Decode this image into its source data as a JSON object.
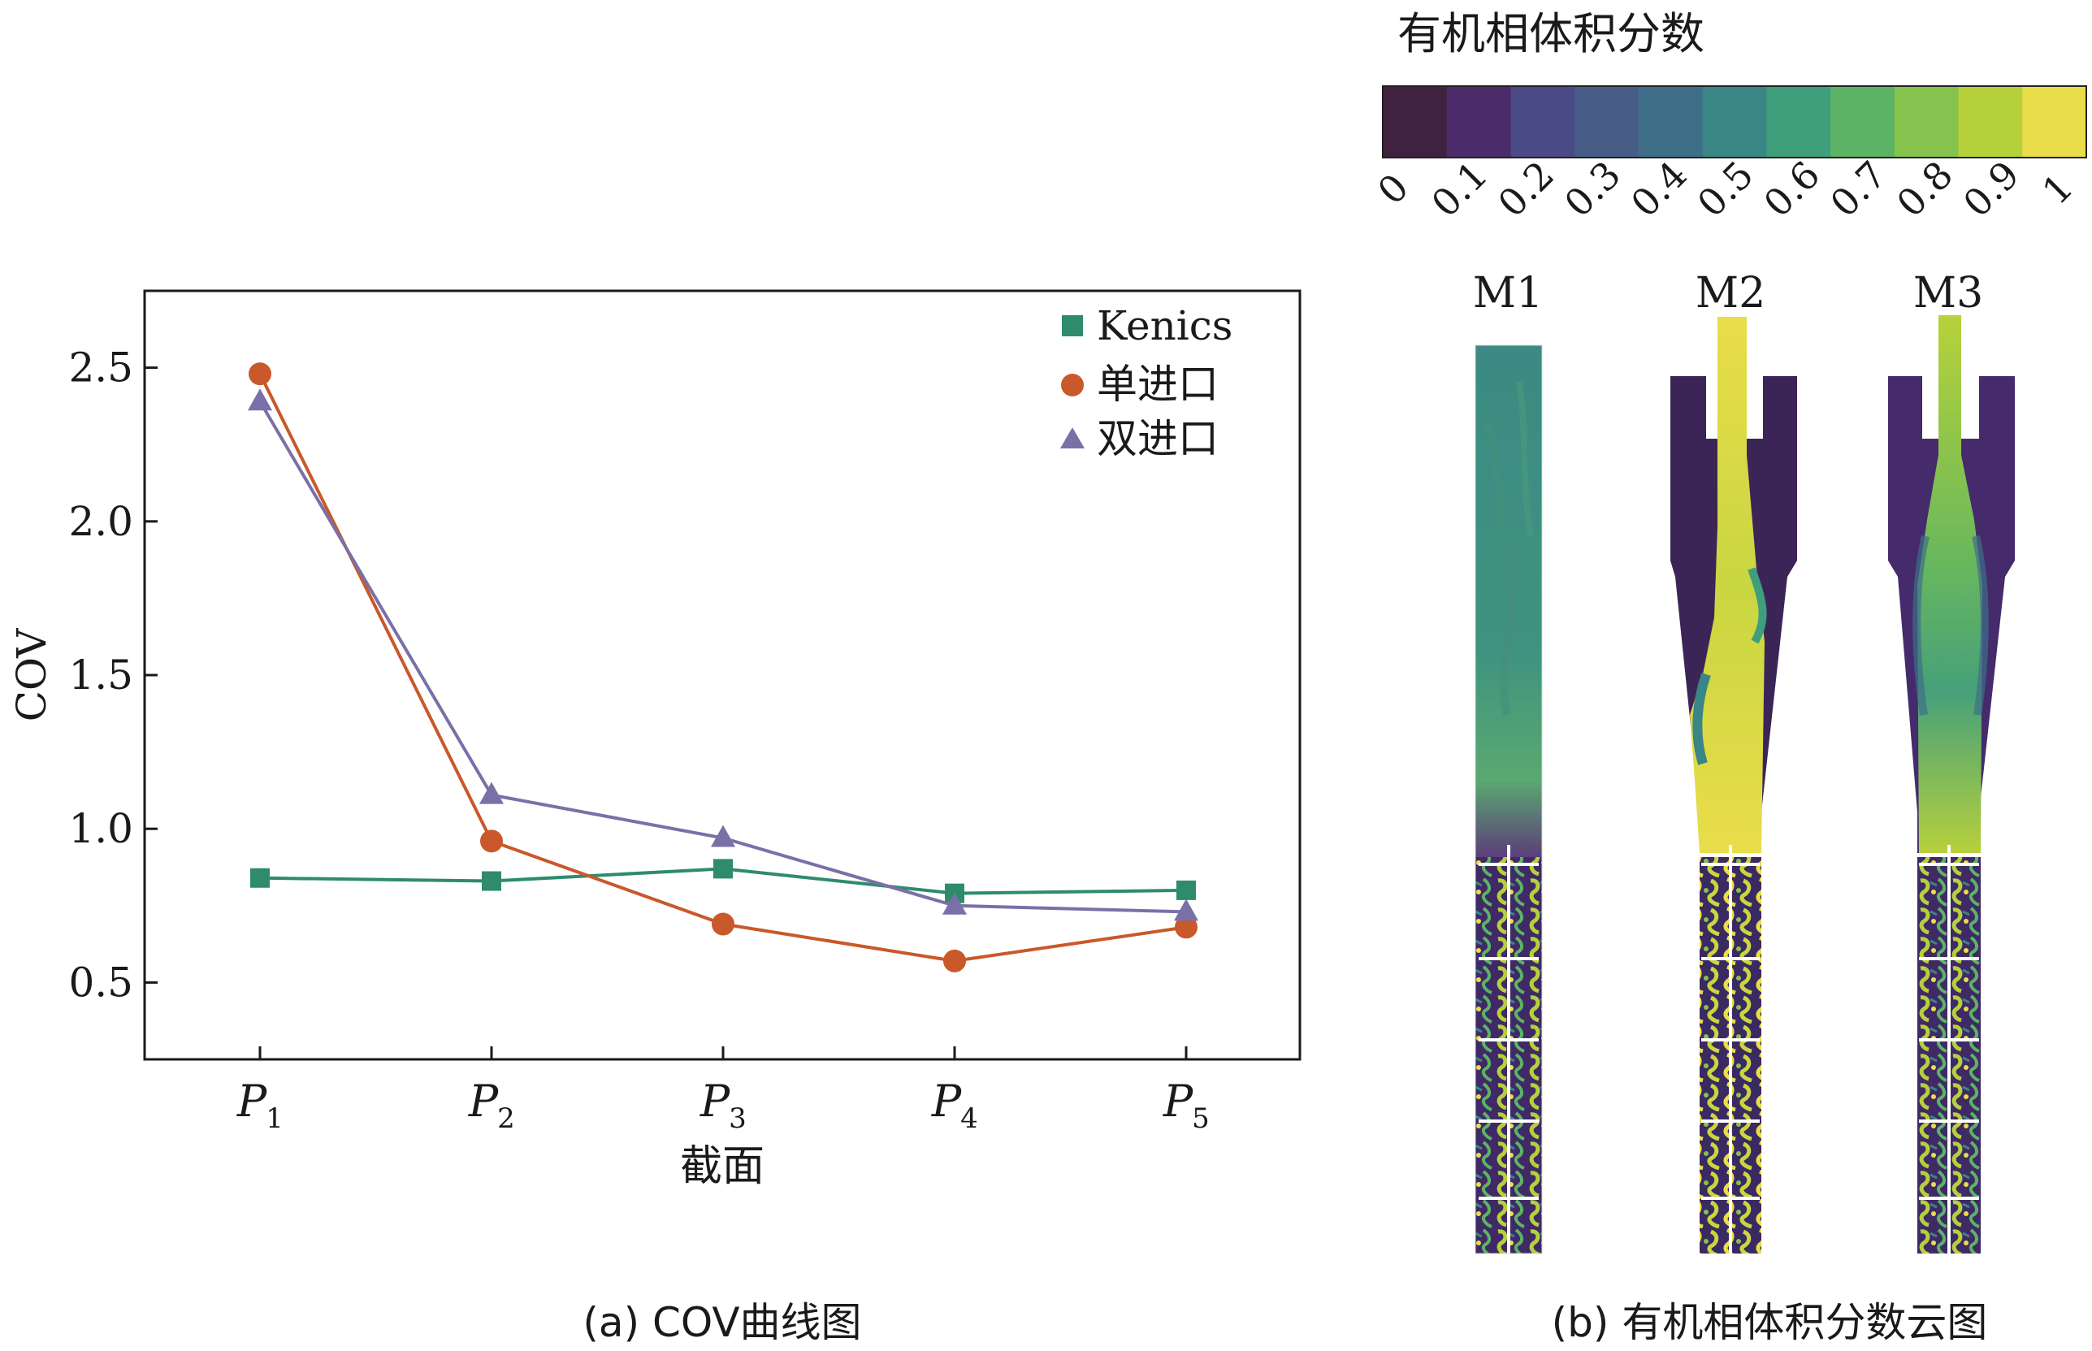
{
  "chart_data": [
    {
      "type": "line",
      "title": "",
      "categories": [
        "P",
        "P",
        "P",
        "P",
        "P"
      ],
      "category_subscripts": [
        "1",
        "2",
        "3",
        "4",
        "5"
      ],
      "xlabel": "截面",
      "ylabel": "COV",
      "ylim": [
        0.25,
        2.75
      ],
      "yticks": [
        0.5,
        1.0,
        1.5,
        2.0,
        2.5
      ],
      "ytick_labels": [
        "0.5",
        "1.0",
        "1.5",
        "2.0",
        "2.5"
      ],
      "legend_position": "top-right",
      "series": [
        {
          "name": "Kenics",
          "marker": "square",
          "color": "#2e8b6b",
          "values": [
            0.84,
            0.83,
            0.87,
            0.79,
            0.8
          ]
        },
        {
          "name": "单进口",
          "marker": "circle",
          "color": "#c9582a",
          "values": [
            2.48,
            0.96,
            0.69,
            0.57,
            0.68
          ]
        },
        {
          "name": "双进口",
          "marker": "triangle",
          "color": "#7a70a8",
          "values": [
            2.39,
            1.11,
            0.97,
            0.75,
            0.73
          ]
        }
      ],
      "caption": "(a) COV曲线图"
    },
    {
      "type": "heatmap",
      "title": "有机相体积分数",
      "colorbar": {
        "ticks": [
          "0",
          "0.1",
          "0.2",
          "0.3",
          "0.4",
          "0.5",
          "0.6",
          "0.7",
          "0.8",
          "0.9",
          "1"
        ],
        "colors": [
          "#40213f",
          "#4b2b6a",
          "#4a4a86",
          "#485c88",
          "#3f6f88",
          "#3a8585",
          "#3f9e7b",
          "#5cb365",
          "#86c24e",
          "#b6d03c",
          "#e9dd4a"
        ]
      },
      "panels": [
        "M1",
        "M2",
        "M3"
      ],
      "caption": "(b) 有机相体积分数云图"
    }
  ]
}
